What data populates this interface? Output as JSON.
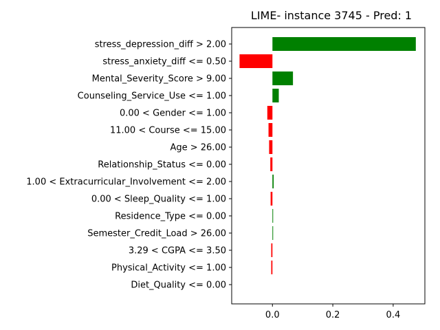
{
  "chart_data": {
    "type": "bar",
    "orientation": "horizontal",
    "title": "LIME- instance 3745 - Pred: 1",
    "xlabel": "",
    "ylabel": "",
    "xlim": [
      -0.135,
      0.505
    ],
    "xticks": [
      {
        "value": 0.0,
        "label": "0.0"
      },
      {
        "value": 0.2,
        "label": "0.2"
      },
      {
        "value": 0.4,
        "label": "0.4"
      }
    ],
    "grid": false,
    "colors": {
      "positive": "#008000",
      "negative": "#ff0000"
    },
    "categories": [
      "stress_depression_diff > 2.00",
      "stress_anxiety_diff <= 0.50",
      "Mental_Severity_Score > 9.00",
      "Counseling_Service_Use <= 1.00",
      "0.00 < Gender <= 1.00",
      "11.00 < Course <= 15.00",
      "Age > 26.00",
      "Relationship_Status <= 0.00",
      "1.00 < Extracurricular_Involvement <= 2.00",
      "0.00 < Sleep_Quality <= 1.00",
      "Residence_Type <= 0.00",
      "Semester_Credit_Load > 26.00",
      "3.29 < CGPA <= 3.50",
      "Physical_Activity <= 1.00",
      "Diet_Quality <= 0.00"
    ],
    "values": [
      0.475,
      -0.109,
      0.068,
      0.021,
      -0.017,
      -0.013,
      -0.011,
      -0.007,
      0.004,
      -0.006,
      0.002,
      0.001,
      -0.004,
      -0.004,
      0.0
    ]
  }
}
